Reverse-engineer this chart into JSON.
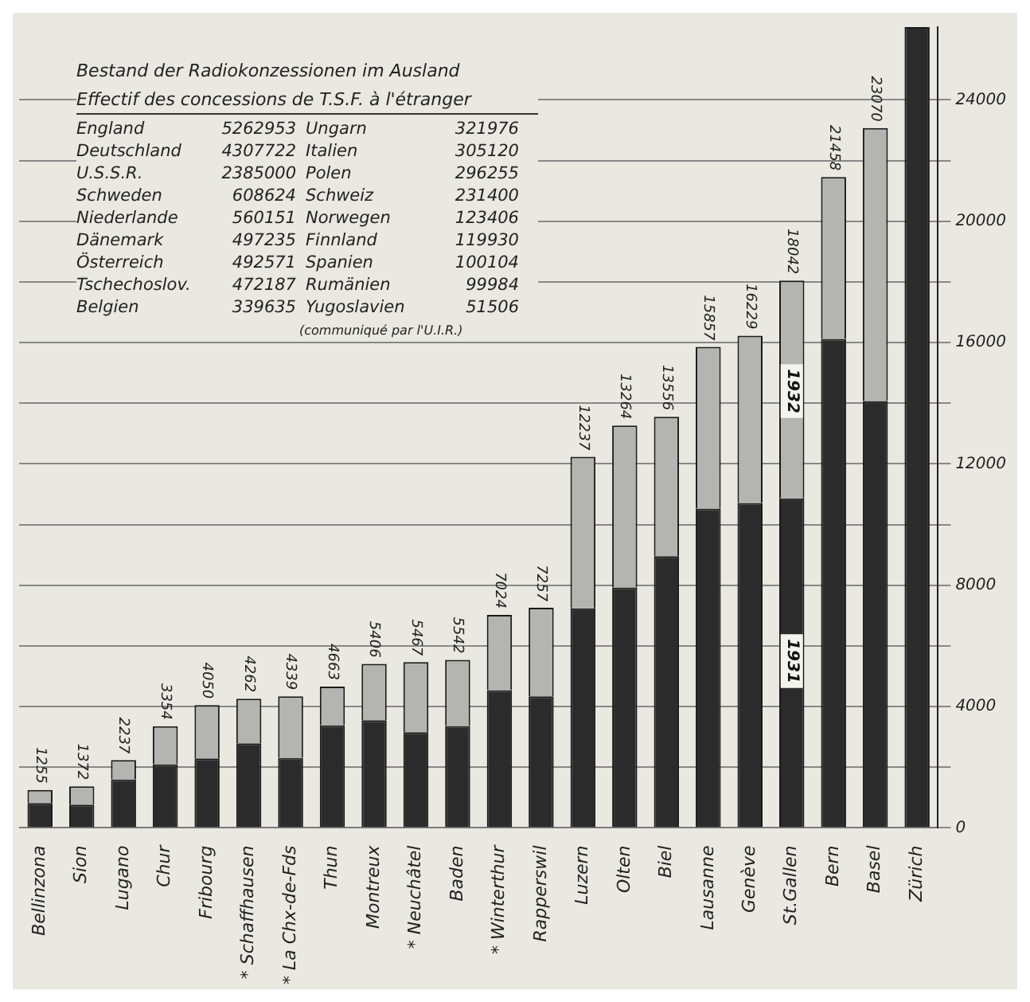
{
  "chart_data": {
    "type": "bar",
    "stacked": true,
    "grid": "y",
    "legend": false,
    "categories": [
      "Bellinzona",
      "Sion",
      "Lugano",
      "Chur",
      "Fribourg",
      "* Schaffhausen",
      "* La Chx-de-Fds",
      "Thun",
      "Montreux",
      "* Neuchâtel",
      "Baden",
      "* Winterthur",
      "Rapperswil",
      "Luzern",
      "Olten",
      "Biel",
      "Lausanne",
      "Genève",
      "St.Gallen",
      "Bern",
      "Basel",
      "Zürich"
    ],
    "series": [
      {
        "color": "#2b2b2b",
        "values": [
          820,
          770,
          1600,
          2100,
          2290,
          2790,
          2310,
          3390,
          3550,
          3160,
          3360,
          4540,
          4340,
          7240,
          7930,
          8960,
          10530,
          10710,
          10860,
          16120,
          14070,
          26400
        ]
      },
      {
        "color": "#b4b4b0",
        "values": [
          435,
          602,
          637,
          1254,
          1760,
          1472,
          2029,
          1273,
          1856,
          2307,
          2182,
          2484,
          2917,
          4997,
          5334,
          4596,
          5327,
          5519,
          7182,
          5338,
          9000,
          null
        ]
      }
    ],
    "totals": [
      "1255",
      "1372",
      "2237",
      "3354",
      "4050",
      "4262",
      "4339",
      "4663",
      "5406",
      "5467",
      "5542",
      "7024",
      "7257",
      "12237",
      "13264",
      "13556",
      "15857",
      "16229",
      "18042",
      "21458",
      "23070",
      null
    ],
    "ylim": [
      0,
      26400
    ],
    "yticks": [
      0,
      {
        "value": 2000,
        "label": null
      },
      4000,
      {
        "value": 6000,
        "label": null
      },
      8000,
      {
        "value": 10000,
        "label": null
      },
      12000,
      {
        "value": 14000,
        "label": null
      },
      16000,
      {
        "value": 18000,
        "label": null
      },
      20000,
      {
        "value": 22000,
        "label": null
      },
      24000
    ],
    "annotations": [
      {
        "text": "1931",
        "x": "St.Gallen",
        "y": 5500
      },
      {
        "text": "1932",
        "x": "St.Gallen",
        "y": 14400
      },
      "Bestand der Radiokonzessionen im Ausland",
      "Effectif des concessions de T.S.F. à l'étranger",
      "England",
      "5262953",
      "Ungarn",
      "321976",
      "Deutschland",
      "4307722",
      "Italien",
      "305120",
      "U.S.S.R.",
      "2385000",
      "Polen",
      "296255",
      "Schweden",
      "608624",
      "Schweiz",
      "231400",
      "Niederlande",
      "560151",
      "Norwegen",
      "123406",
      "Dänemark",
      "497235",
      "Finnland",
      "119930",
      "Österreich",
      "492571",
      "Spanien",
      "100104",
      "Tschechoslov.",
      "472187",
      "Rumänien",
      "99984",
      "Belgien",
      "339635",
      "Yugoslavien",
      "51506",
      "(communiqué par l'U.I.R.)"
    ]
  }
}
